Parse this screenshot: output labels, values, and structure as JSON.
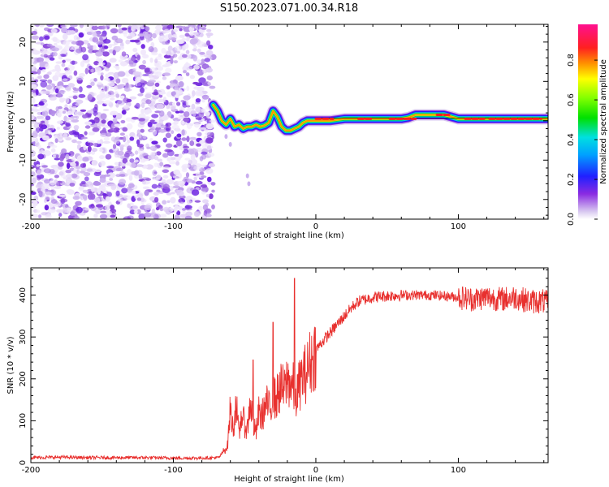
{
  "title": "S150.2023.071.00.34.R18",
  "chart_data": [
    {
      "type": "heatmap",
      "xlabel": "Height of straight line (km)",
      "ylabel": "Frequency (Hz)",
      "xlim": [
        -200,
        163
      ],
      "ylim": [
        -25,
        24.5
      ],
      "x_ticks": [
        -200,
        -100,
        0,
        100
      ],
      "y_ticks": [
        -20,
        -10,
        0,
        10,
        20
      ],
      "noise_region": {
        "x_start": -200,
        "x_end": -72,
        "freq_range": [
          -25,
          24.5
        ]
      },
      "ridge_center": [
        [
          -72,
          4
        ],
        [
          -69,
          2.5
        ],
        [
          -66,
          0
        ],
        [
          -63,
          -1
        ],
        [
          -60,
          0.5
        ],
        [
          -57,
          -1.5
        ],
        [
          -54,
          -1
        ],
        [
          -51,
          -2
        ],
        [
          -48,
          -1.5
        ],
        [
          -45,
          -1.5
        ],
        [
          -42,
          -1
        ],
        [
          -39,
          -1.5
        ],
        [
          -36,
          -1.2
        ],
        [
          -33,
          -0.5
        ],
        [
          -30,
          2.5
        ],
        [
          -27,
          1
        ],
        [
          -24,
          -1.5
        ],
        [
          -21,
          -2.5
        ],
        [
          -18,
          -2.5
        ],
        [
          -15,
          -2
        ],
        [
          -12,
          -1.5
        ],
        [
          -9,
          -0.5
        ],
        [
          -6,
          0
        ],
        [
          -3,
          0
        ],
        [
          0,
          0
        ],
        [
          10,
          0
        ],
        [
          20,
          0.5
        ],
        [
          30,
          0.5
        ],
        [
          40,
          0.5
        ],
        [
          50,
          0.5
        ],
        [
          60,
          0.5
        ],
        [
          65,
          0.8
        ],
        [
          70,
          1.5
        ],
        [
          80,
          1.5
        ],
        [
          90,
          1.5
        ],
        [
          95,
          1
        ],
        [
          100,
          0.5
        ],
        [
          120,
          0.5
        ],
        [
          140,
          0.5
        ],
        [
          150,
          0.5
        ],
        [
          160,
          0.5
        ],
        [
          163,
          0.5
        ]
      ],
      "colorbar": {
        "label": "Normalized spectral amplitude",
        "range": [
          0,
          0.98
        ],
        "ticks": [
          0.0,
          0.2,
          0.4,
          0.6,
          0.8
        ],
        "colormap": "rainbow (white-violet-blue-cyan-green-yellow-red-magenta)"
      }
    },
    {
      "type": "line",
      "xlabel": "Height of straight line (km)",
      "ylabel": "SNR (10 * v/v)",
      "xlim": [
        -200,
        163
      ],
      "ylim": [
        0,
        465
      ],
      "x_ticks": [
        -200,
        -100,
        0,
        100
      ],
      "y_ticks": [
        0,
        100,
        200,
        300,
        400
      ],
      "color": "#e8302e",
      "series": [
        {
          "points": [
            [
              -200,
              12
            ],
            [
              -180,
              13
            ],
            [
              -160,
              12
            ],
            [
              -140,
              12
            ],
            [
              -120,
              12
            ],
            [
              -100,
              11
            ],
            [
              -80,
              11
            ],
            [
              -68,
              12
            ],
            [
              -62,
              40
            ],
            [
              -60,
              130
            ],
            [
              -58,
              75
            ],
            [
              -56,
              150
            ],
            [
              -54,
              60
            ],
            [
              -52,
              120
            ],
            [
              -50,
              90
            ],
            [
              -48,
              80
            ],
            [
              -46,
              150
            ],
            [
              -44,
              90
            ],
            [
              -42,
              70
            ],
            [
              -40,
              120
            ],
            [
              -38,
              110
            ],
            [
              -36,
              130
            ],
            [
              -34,
              140
            ],
            [
              -32,
              120
            ],
            [
              -30,
              160
            ],
            [
              -28,
              150
            ],
            [
              -26,
              170
            ],
            [
              -24,
              180
            ],
            [
              -22,
              170
            ],
            [
              -20,
              200
            ],
            [
              -18,
              190
            ],
            [
              -16,
              180
            ],
            [
              -14,
              150
            ],
            [
              -12,
              180
            ],
            [
              -10,
              200
            ],
            [
              -8,
              210
            ],
            [
              -6,
              220
            ],
            [
              -4,
              240
            ],
            [
              -2,
              250
            ],
            [
              0,
              270
            ],
            [
              5,
              290
            ],
            [
              10,
              310
            ],
            [
              15,
              330
            ],
            [
              20,
              350
            ],
            [
              25,
              370
            ],
            [
              30,
              385
            ],
            [
              35,
              390
            ],
            [
              40,
              395
            ],
            [
              50,
              398
            ],
            [
              60,
              400
            ],
            [
              70,
              400
            ],
            [
              80,
              400
            ],
            [
              90,
              398
            ],
            [
              100,
              395
            ],
            [
              110,
              390
            ],
            [
              120,
              395
            ],
            [
              130,
              390
            ],
            [
              140,
              395
            ],
            [
              150,
              385
            ],
            [
              160,
              385
            ],
            [
              163,
              380
            ]
          ]
        }
      ],
      "spikes": [
        {
          "x": -44,
          "y": 245
        },
        {
          "x": -30,
          "y": 335
        },
        {
          "x": -15,
          "y": 440
        }
      ]
    }
  ]
}
